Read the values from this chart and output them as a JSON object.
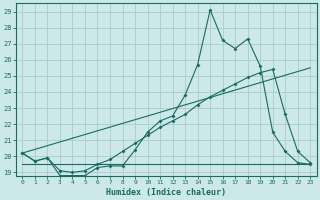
{
  "xlabel": "Humidex (Indice chaleur)",
  "ylabel": "",
  "xlim": [
    -0.5,
    23.5
  ],
  "ylim": [
    18.8,
    29.5
  ],
  "yticks": [
    19,
    20,
    21,
    22,
    23,
    24,
    25,
    26,
    27,
    28,
    29
  ],
  "xticks": [
    0,
    1,
    2,
    3,
    4,
    5,
    6,
    7,
    8,
    9,
    10,
    11,
    12,
    13,
    14,
    15,
    16,
    17,
    18,
    19,
    20,
    21,
    22,
    23
  ],
  "bg_color": "#cce8e8",
  "grid_color": "#b0d4d4",
  "line_color": "#1a6b60",
  "series1_x": [
    0,
    1,
    2,
    3,
    4,
    5,
    6,
    7,
    8,
    9,
    10,
    11,
    12,
    13,
    14,
    15,
    16,
    17,
    18,
    19,
    20,
    21,
    22,
    23
  ],
  "series1_y": [
    20.2,
    19.7,
    19.9,
    18.8,
    18.8,
    18.8,
    19.3,
    19.4,
    19.4,
    20.4,
    21.5,
    22.2,
    22.5,
    23.8,
    25.7,
    29.1,
    27.2,
    26.7,
    27.3,
    25.6,
    21.5,
    20.3,
    19.6,
    19.5
  ],
  "series2_x": [
    0,
    1,
    2,
    3,
    4,
    5,
    6,
    7,
    8,
    9,
    10,
    11,
    12,
    13,
    14,
    15,
    16,
    17,
    18,
    19,
    20,
    21,
    22,
    23
  ],
  "series2_y": [
    20.2,
    19.7,
    19.9,
    19.1,
    19.0,
    19.1,
    19.5,
    19.8,
    20.3,
    20.8,
    21.3,
    21.8,
    22.2,
    22.6,
    23.2,
    23.7,
    24.1,
    24.5,
    24.9,
    25.2,
    25.4,
    22.6,
    20.3,
    19.6
  ],
  "series3_x": [
    0,
    23
  ],
  "series3_y": [
    19.5,
    19.5
  ],
  "series4_x": [
    0,
    23
  ],
  "series4_y": [
    20.2,
    25.5
  ]
}
